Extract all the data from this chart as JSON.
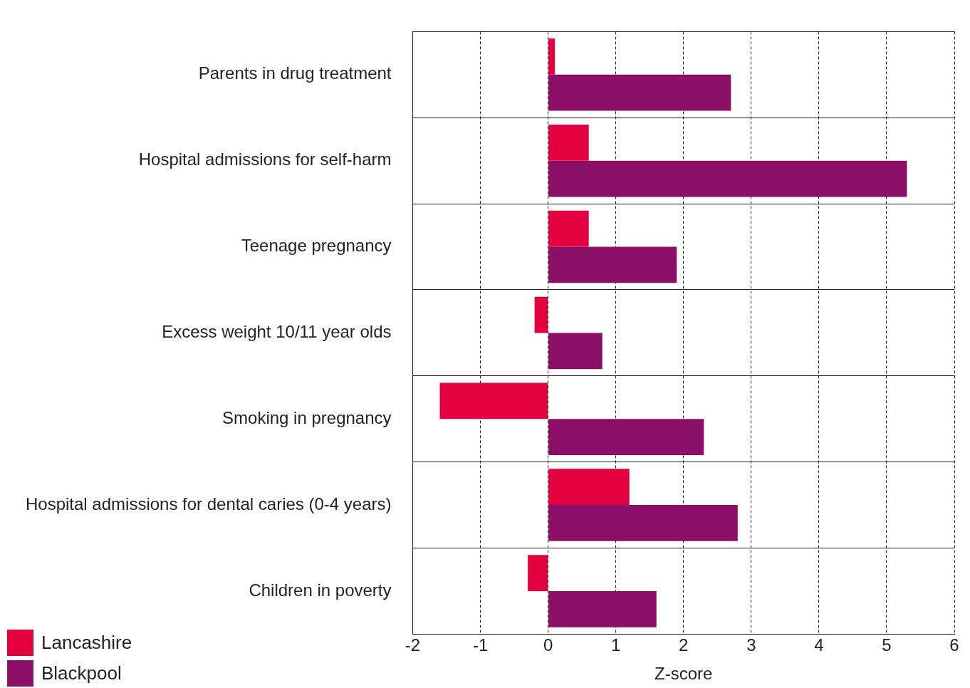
{
  "chart_data": {
    "type": "bar",
    "orientation": "horizontal",
    "xlabel": "Z-score",
    "categories": [
      "Parents in drug treatment",
      "Hospital admissions for self-harm",
      "Teenage pregnancy",
      "Excess weight 10/11 year olds",
      "Smoking in pregnancy",
      "Hospital admissions for dental caries (0-4 years)",
      "Children in poverty"
    ],
    "series": [
      {
        "name": "Lancashire",
        "color": "#e4003f",
        "values": [
          0.1,
          0.6,
          0.6,
          -0.2,
          -1.6,
          1.2,
          -0.3
        ]
      },
      {
        "name": "Blackpool",
        "color": "#8b0f67",
        "values": [
          2.7,
          5.3,
          1.9,
          0.8,
          2.3,
          2.8,
          1.6
        ]
      }
    ],
    "xlim": [
      -2,
      6
    ],
    "xticks": [
      -2,
      -1,
      0,
      1,
      2,
      3,
      4,
      5,
      6
    ],
    "grid": true,
    "legend": "bottom left"
  }
}
